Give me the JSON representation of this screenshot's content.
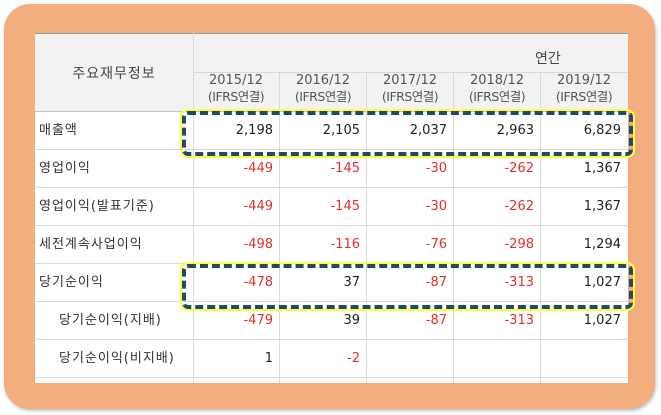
{
  "table": {
    "corner_label": "주요재무정보",
    "group_label": "연간",
    "columns": [
      {
        "year": "2015/12",
        "basis": "(IFRS연결)"
      },
      {
        "year": "2016/12",
        "basis": "(IFRS연결)"
      },
      {
        "year": "2017/12",
        "basis": "(IFRS연결)"
      },
      {
        "year": "2018/12",
        "basis": "(IFRS연결)"
      },
      {
        "year": "2019/12",
        "basis": "(IFRS연결)"
      }
    ],
    "rows": [
      {
        "label": "매출액",
        "values": [
          "2,198",
          "2,105",
          "2,037",
          "2,963",
          "6,829"
        ]
      },
      {
        "label": "영업이익",
        "values": [
          "-449",
          "-145",
          "-30",
          "-262",
          "1,367"
        ]
      },
      {
        "label": "영업이익(발표기준)",
        "values": [
          "-449",
          "-145",
          "-30",
          "-262",
          "1,367"
        ]
      },
      {
        "label": "세전계속사업이익",
        "values": [
          "-498",
          "-116",
          "-76",
          "-298",
          "1,294"
        ]
      },
      {
        "label": "당기순이익",
        "values": [
          "-478",
          "37",
          "-87",
          "-313",
          "1,027"
        ]
      },
      {
        "label": "당기순이익(지배)",
        "values": [
          "-479",
          "39",
          "-87",
          "-313",
          "1,027"
        ]
      },
      {
        "label": "당기순이익(비지배)",
        "values": [
          "1",
          "-2",
          "",
          "",
          ""
        ]
      }
    ]
  },
  "highlights": [
    "매출액",
    "당기순이익"
  ],
  "colors": {
    "frame": "#f4ad7f",
    "negative": "#e0302a",
    "highlight_outline": "#ffff33",
    "highlight_dash": "#1f4a6e"
  }
}
